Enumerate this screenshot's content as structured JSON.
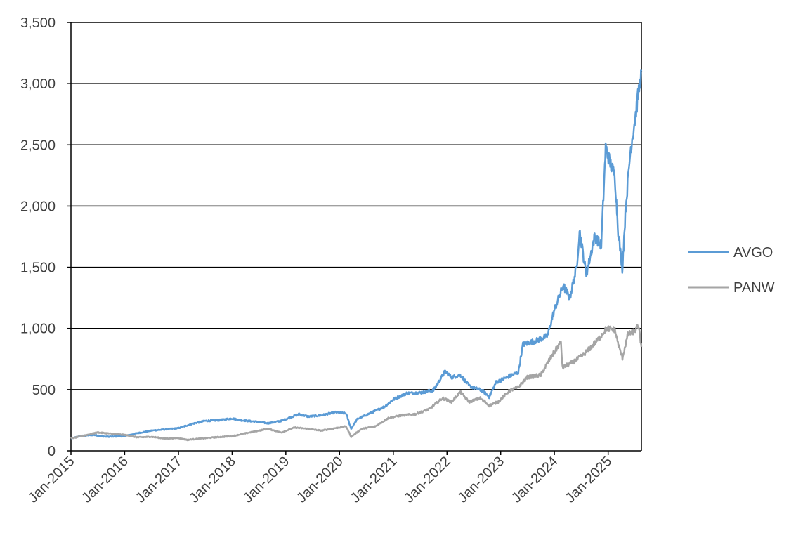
{
  "chart_data": {
    "type": "line",
    "title": "",
    "xlabel": "",
    "ylabel": "",
    "ylim": [
      0,
      3500
    ],
    "y_ticks": [
      0,
      500,
      1000,
      1500,
      2000,
      2500,
      3000,
      3500
    ],
    "y_tick_labels": [
      "0",
      "500",
      "1,000",
      "1,500",
      "2,000",
      "2,500",
      "3,000",
      "3,500"
    ],
    "x_range": [
      "2015-01-01",
      "2025-08-15"
    ],
    "x_ticks": [
      "2015-01-01",
      "2016-01-01",
      "2017-01-01",
      "2018-01-01",
      "2019-01-01",
      "2020-01-01",
      "2021-01-01",
      "2022-01-01",
      "2023-01-01",
      "2024-01-01",
      "2025-01-01"
    ],
    "x_tick_labels": [
      "Jan-2015",
      "Jan-2016",
      "Jan-2017",
      "Jan-2018",
      "Jan-2019",
      "Jan-2020",
      "Jan-2021",
      "Jan-2022",
      "Jan-2023",
      "Jan-2024",
      "Jan-2025"
    ],
    "grid": "horizontal major gridlines",
    "legend_position": "right",
    "series": [
      {
        "name": "AVGO",
        "color": "#5b9bd5",
        "points": [
          [
            "2015-01-01",
            100
          ],
          [
            "2015-03-01",
            120
          ],
          [
            "2015-06-01",
            130
          ],
          [
            "2015-09-01",
            115
          ],
          [
            "2016-01-01",
            120
          ],
          [
            "2016-04-01",
            145
          ],
          [
            "2016-07-01",
            165
          ],
          [
            "2016-10-01",
            175
          ],
          [
            "2017-01-01",
            185
          ],
          [
            "2017-04-01",
            220
          ],
          [
            "2017-07-01",
            245
          ],
          [
            "2017-10-01",
            250
          ],
          [
            "2018-01-01",
            265
          ],
          [
            "2018-03-01",
            250
          ],
          [
            "2018-06-01",
            240
          ],
          [
            "2018-09-01",
            225
          ],
          [
            "2018-12-01",
            245
          ],
          [
            "2019-04-01",
            300
          ],
          [
            "2019-06-01",
            280
          ],
          [
            "2019-09-01",
            290
          ],
          [
            "2019-12-01",
            315
          ],
          [
            "2020-02-15",
            305
          ],
          [
            "2020-03-20",
            180
          ],
          [
            "2020-05-01",
            260
          ],
          [
            "2020-08-01",
            310
          ],
          [
            "2020-11-01",
            360
          ],
          [
            "2021-01-01",
            420
          ],
          [
            "2021-04-01",
            470
          ],
          [
            "2021-07-01",
            475
          ],
          [
            "2021-10-01",
            495
          ],
          [
            "2021-12-20",
            650
          ],
          [
            "2022-02-01",
            600
          ],
          [
            "2022-04-01",
            620
          ],
          [
            "2022-06-01",
            530
          ],
          [
            "2022-09-01",
            490
          ],
          [
            "2022-10-15",
            440
          ],
          [
            "2022-12-01",
            560
          ],
          [
            "2023-03-01",
            610
          ],
          [
            "2023-05-01",
            640
          ],
          [
            "2023-06-01",
            870
          ],
          [
            "2023-09-01",
            900
          ],
          [
            "2023-11-15",
            940
          ],
          [
            "2024-01-01",
            1150
          ],
          [
            "2024-03-01",
            1350
          ],
          [
            "2024-04-15",
            1250
          ],
          [
            "2024-06-01",
            1500
          ],
          [
            "2024-06-20",
            1800
          ],
          [
            "2024-08-05",
            1440
          ],
          [
            "2024-10-01",
            1750
          ],
          [
            "2024-11-15",
            1680
          ],
          [
            "2024-12-15",
            2480
          ],
          [
            "2025-01-15",
            2350
          ],
          [
            "2025-02-15",
            2250
          ],
          [
            "2025-03-10",
            1800
          ],
          [
            "2025-04-07",
            1480
          ],
          [
            "2025-05-01",
            2000
          ],
          [
            "2025-06-01",
            2450
          ],
          [
            "2025-07-01",
            2700
          ],
          [
            "2025-08-15",
            3100
          ]
        ]
      },
      {
        "name": "PANW",
        "color": "#a5a5a5",
        "points": [
          [
            "2015-01-01",
            100
          ],
          [
            "2015-04-01",
            125
          ],
          [
            "2015-07-01",
            150
          ],
          [
            "2015-10-01",
            140
          ],
          [
            "2016-01-01",
            130
          ],
          [
            "2016-04-01",
            110
          ],
          [
            "2016-07-01",
            115
          ],
          [
            "2016-10-01",
            100
          ],
          [
            "2017-01-01",
            105
          ],
          [
            "2017-03-01",
            90
          ],
          [
            "2017-06-01",
            100
          ],
          [
            "2017-09-01",
            110
          ],
          [
            "2018-01-01",
            120
          ],
          [
            "2018-05-01",
            150
          ],
          [
            "2018-09-01",
            180
          ],
          [
            "2018-12-01",
            150
          ],
          [
            "2019-03-01",
            190
          ],
          [
            "2019-06-01",
            180
          ],
          [
            "2019-09-01",
            165
          ],
          [
            "2019-12-01",
            185
          ],
          [
            "2020-02-15",
            200
          ],
          [
            "2020-03-20",
            115
          ],
          [
            "2020-06-01",
            180
          ],
          [
            "2020-09-01",
            200
          ],
          [
            "2020-12-01",
            270
          ],
          [
            "2021-03-01",
            290
          ],
          [
            "2021-06-01",
            300
          ],
          [
            "2021-09-01",
            340
          ],
          [
            "2021-12-01",
            430
          ],
          [
            "2022-02-01",
            400
          ],
          [
            "2022-04-01",
            480
          ],
          [
            "2022-06-01",
            400
          ],
          [
            "2022-08-15",
            430
          ],
          [
            "2022-10-15",
            370
          ],
          [
            "2022-12-15",
            400
          ],
          [
            "2023-03-01",
            490
          ],
          [
            "2023-05-01",
            520
          ],
          [
            "2023-07-01",
            600
          ],
          [
            "2023-10-01",
            620
          ],
          [
            "2023-12-01",
            750
          ],
          [
            "2024-02-15",
            890
          ],
          [
            "2024-02-25",
            680
          ],
          [
            "2024-05-01",
            720
          ],
          [
            "2024-07-01",
            770
          ],
          [
            "2024-09-01",
            840
          ],
          [
            "2024-11-01",
            920
          ],
          [
            "2024-12-20",
            1000
          ],
          [
            "2025-02-15",
            990
          ],
          [
            "2025-03-15",
            850
          ],
          [
            "2025-04-08",
            760
          ],
          [
            "2025-05-15",
            950
          ],
          [
            "2025-07-01",
            980
          ],
          [
            "2025-07-25",
            1020
          ],
          [
            "2025-08-15",
            850
          ]
        ]
      }
    ]
  }
}
